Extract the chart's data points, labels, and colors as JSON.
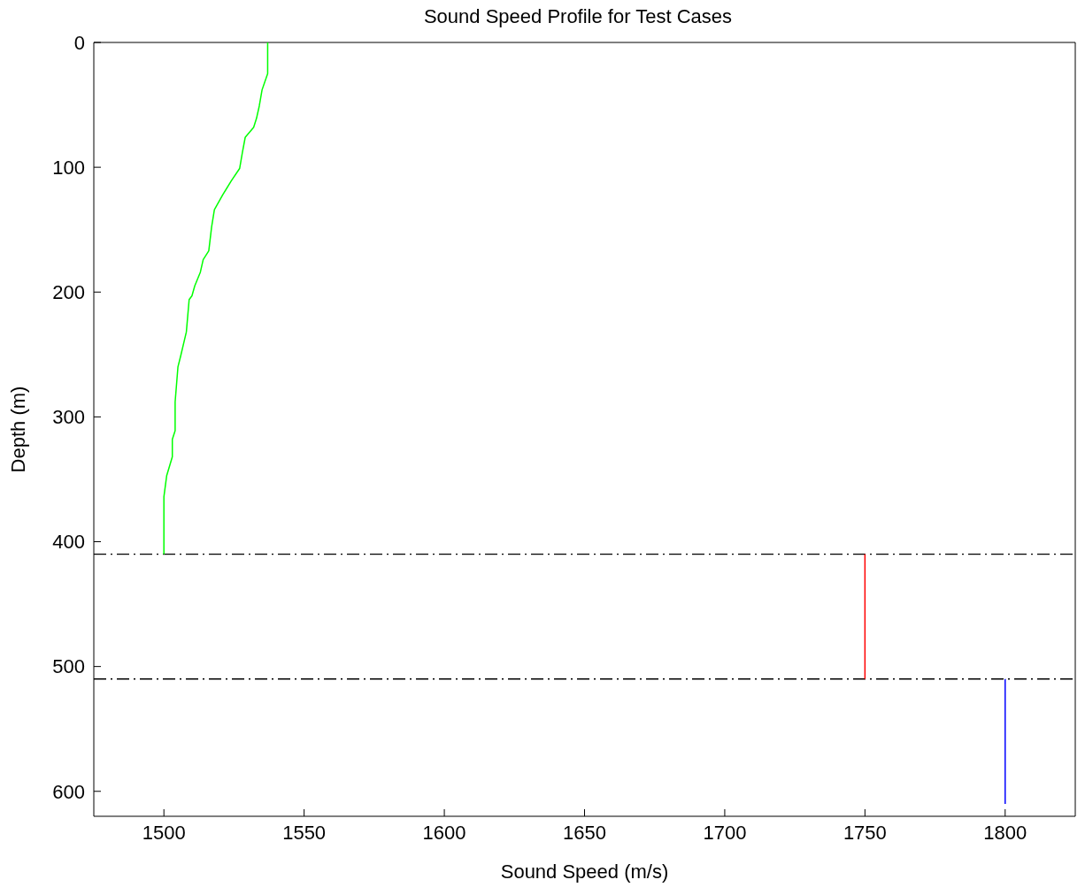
{
  "chart_data": {
    "type": "line",
    "title": "Sound Speed Profile for Test Cases",
    "xlabel": "Sound Speed (m/s)",
    "ylabel": "Depth (m)",
    "xlim": [
      1475,
      1825
    ],
    "xticks": [
      1500,
      1550,
      1600,
      1650,
      1700,
      1750,
      1800
    ],
    "ylim": [
      620,
      0
    ],
    "yticks": [
      0,
      100,
      200,
      300,
      400,
      500,
      600
    ],
    "marker": "none",
    "line_style": "solid",
    "series": [
      {
        "color": "#00ff00",
        "x": [
          1537,
          1537,
          1535,
          1534,
          1533,
          1532,
          1529,
          1528,
          1527,
          1524,
          1521,
          1518,
          1517,
          1516,
          1514,
          1513,
          1511,
          1510,
          1509,
          1508,
          1506,
          1505,
          1504,
          1504,
          1503,
          1503,
          1501,
          1500,
          1500,
          1500
        ],
        "values": [
          0,
          25,
          38,
          51,
          61,
          68,
          76,
          88,
          101,
          111,
          122,
          134,
          148,
          167,
          174,
          184,
          195,
          203,
          206,
          232,
          251,
          260,
          288,
          311,
          318,
          332,
          347,
          364,
          402,
          410
        ]
      },
      {
        "color": "#ff0000",
        "x": [
          1750,
          1750
        ],
        "values": [
          410,
          510
        ]
      },
      {
        "color": "#0000ff",
        "x": [
          1800,
          1800
        ],
        "values": [
          510,
          610
        ]
      }
    ],
    "ref_lines": [
      {
        "axis": "y",
        "value": 410,
        "color": "#000000",
        "line_style": "dashed"
      },
      {
        "axis": "y",
        "value": 510,
        "color": "#000000",
        "line_style": "dashed"
      }
    ]
  }
}
